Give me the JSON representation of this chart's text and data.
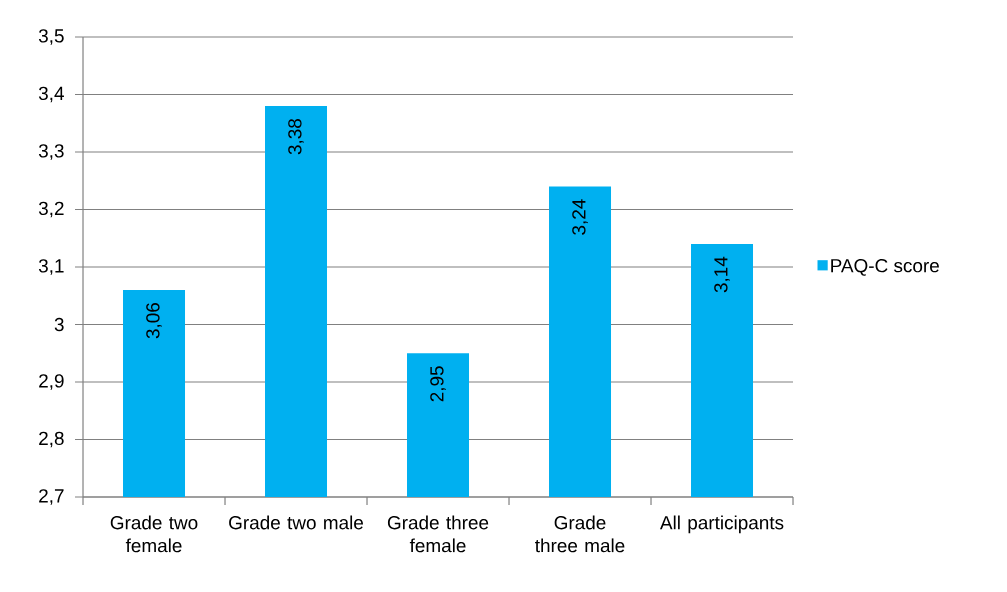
{
  "chart_data": {
    "type": "bar",
    "categories": [
      "Grade two female",
      "Grade two male",
      "Grade three female",
      "Grade three male",
      "All participants"
    ],
    "series": [
      {
        "name": "PAQ-C score",
        "color": "#00b0f0",
        "values": [
          3.06,
          3.38,
          2.95,
          3.24,
          3.14
        ],
        "value_labels": [
          "3,06",
          "3,38",
          "2,95",
          "3,24",
          "3,14"
        ]
      }
    ],
    "ylim": [
      2.7,
      3.5
    ],
    "yticks": [
      {
        "value": 2.7,
        "label": "2,7"
      },
      {
        "value": 2.8,
        "label": "2,8"
      },
      {
        "value": 2.9,
        "label": "2,9"
      },
      3,
      {
        "value": 3.1,
        "label": "3,1"
      },
      {
        "value": 3.2,
        "label": "3,2"
      },
      {
        "value": 3.3,
        "label": "3,3"
      },
      {
        "value": 3.4,
        "label": "3,4"
      },
      {
        "value": 3.5,
        "label": "3,5"
      }
    ],
    "grid": "y",
    "legend": "right"
  }
}
